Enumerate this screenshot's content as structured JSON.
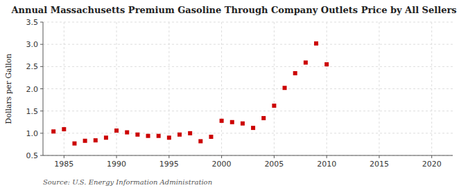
{
  "chart_data": {
    "type": "scatter",
    "title": "Annual Massachusetts Premium Gasoline Through Company Outlets Price by All Sellers",
    "ylabel": "Dollars per Gallon",
    "annotations": [
      "Source: U.S. Energy Information Administration"
    ],
    "x": [
      1984,
      1985,
      1986,
      1987,
      1988,
      1989,
      1990,
      1991,
      1992,
      1993,
      1994,
      1995,
      1996,
      1997,
      1998,
      1999,
      2000,
      2001,
      2002,
      2003,
      2004,
      2005,
      2006,
      2007,
      2008,
      2009,
      2010
    ],
    "values": [
      1.04,
      1.09,
      0.77,
      0.83,
      0.84,
      0.9,
      1.06,
      1.02,
      0.97,
      0.94,
      0.94,
      0.9,
      0.97,
      1.0,
      0.82,
      0.92,
      1.28,
      1.25,
      1.22,
      1.12,
      1.34,
      1.62,
      2.02,
      2.35,
      2.59,
      3.02,
      2.55
    ],
    "color": "#cc0000",
    "marker": "square",
    "xlim": [
      1983,
      2022
    ],
    "ylim": [
      0.5,
      3.5
    ],
    "xticks": [
      1985,
      1990,
      1995,
      2000,
      2005,
      2010,
      2015,
      2020
    ],
    "yticks": [
      0.5,
      {
        "value": 1.0,
        "label": "1.0"
      },
      1.5,
      {
        "value": 2.0,
        "label": "2.0"
      },
      2.5,
      {
        "value": 3.0,
        "label": "3.0"
      },
      3.5
    ],
    "grid": true
  }
}
